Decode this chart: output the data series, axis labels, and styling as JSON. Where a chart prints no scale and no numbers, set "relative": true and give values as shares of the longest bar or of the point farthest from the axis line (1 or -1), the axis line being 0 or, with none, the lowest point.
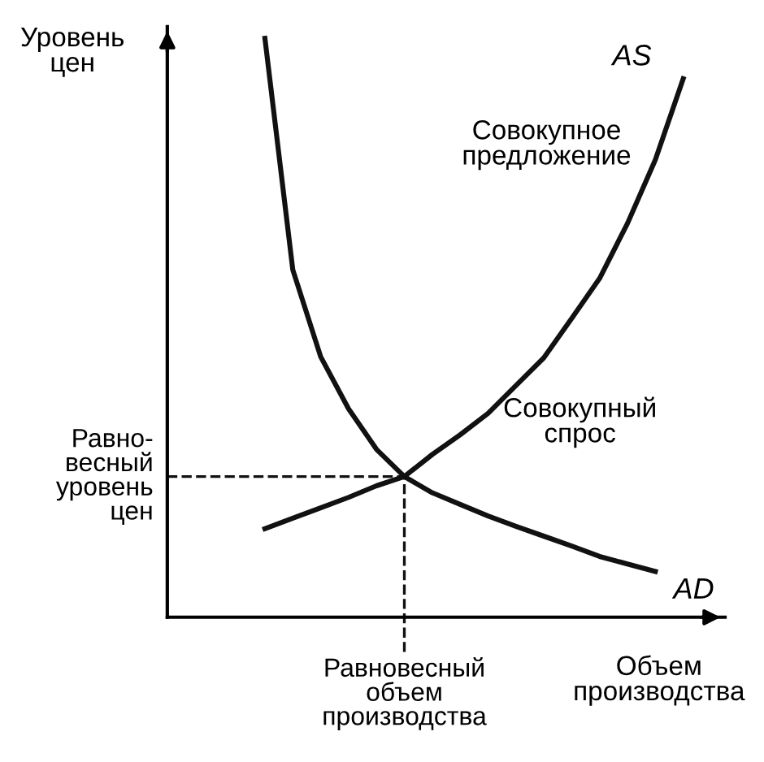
{
  "chart_data": {
    "type": "line",
    "relative": true,
    "legend": false,
    "marker": "none",
    "line_style": "solid",
    "xlabel": "Объем\nпроизводства",
    "ylabel": "Уровень\nцен",
    "categories": [
      null,
      null,
      null,
      null,
      null,
      null,
      null,
      null,
      null,
      null,
      null,
      null,
      null,
      null,
      null,
      null,
      null,
      null,
      null,
      null
    ],
    "series": [
      {
        "name": "AS",
        "color": "#111111",
        "values": [
          null,
          null,
          null,
          0.153,
          0.171,
          0.189,
          0.207,
          0.227,
          0.243,
          0.281,
          0.315,
          0.352,
          0.4,
          0.448,
          0.516,
          0.585,
          0.68,
          0.79,
          0.93,
          null
        ]
      },
      {
        "name": "AD",
        "color": "#111111",
        "values": [
          null,
          null,
          null,
          1,
          0.6,
          0.45,
          0.36,
          0.29,
          0.243,
          0.215,
          0.195,
          0.175,
          0.157,
          0.14,
          0.123,
          0.105,
          0.092,
          0.079,
          null,
          null
        ]
      }
    ],
    "ref_lines": [
      {
        "axis": "x",
        "label": "Равновесный\nобъем\nпроизводства",
        "color": "#111111",
        "line_style": "dashed"
      },
      {
        "axis": "y",
        "value": 0.243,
        "label": "Равно-\nвесный\nуровень\nцен",
        "color": "#111111",
        "line_style": "dashed"
      }
    ],
    "annotations": [
      "Совокупное\nпредложение",
      "Совокупный\nспрос"
    ]
  }
}
